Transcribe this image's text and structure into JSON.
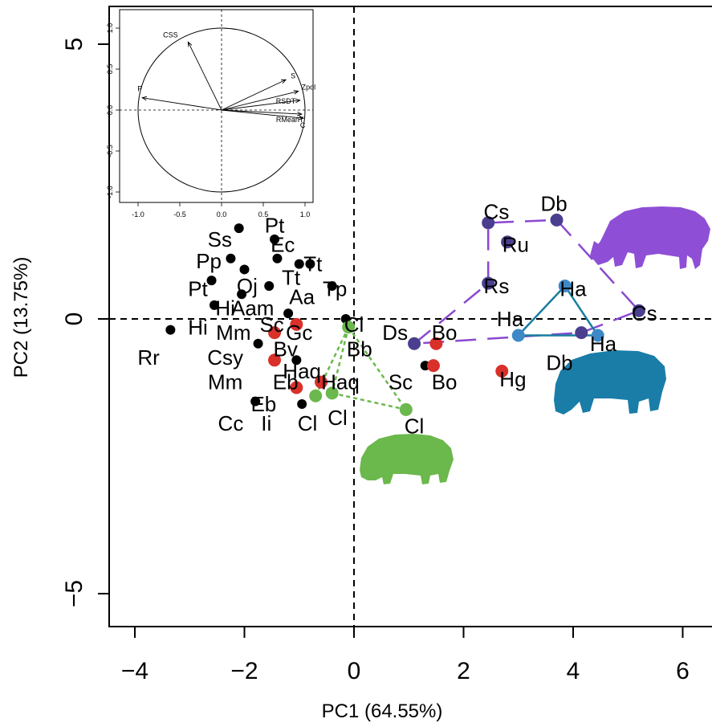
{
  "colors": {
    "black": "#000000",
    "red": "#d9302a",
    "green": "#6bb84c",
    "purple_dot": "#4a3f8f",
    "purple_line": "#8a48d0",
    "blue_dot": "#3f88c8",
    "blue_line": "#1a7da0",
    "rhino": "#8e4fd6",
    "hippo_blue": "#1a7da8",
    "hippo_green": "#6bb84c"
  },
  "chart_data": [
    {
      "type": "scatter",
      "title": "",
      "xlabel": "PC1 (64.55%)",
      "ylabel": "PC2 (13.75%)",
      "xlim": [
        -4.5,
        6.5
      ],
      "ylim": [
        -5.7,
        5.8
      ],
      "xticks": [
        -4,
        -2,
        0,
        2,
        4,
        6
      ],
      "xtick_labels": [
        "−4",
        "−2",
        "0",
        "2",
        "4",
        "6"
      ],
      "yticks": [
        -5,
        0,
        5
      ],
      "ytick_labels": [
        "−5",
        "0",
        "5"
      ],
      "reference_lines": {
        "x": 0,
        "y": 0,
        "style": "dashed"
      },
      "series": [
        {
          "group": "black",
          "color": "#000000",
          "points": [
            {
              "x": -2.1,
              "y": 1.65
            },
            {
              "x": -2.25,
              "y": 1.1
            },
            {
              "x": -2.6,
              "y": 0.7
            },
            {
              "x": -2.55,
              "y": 0.25
            },
            {
              "x": -2.0,
              "y": 0.9
            },
            {
              "x": -1.45,
              "y": 1.45
            },
            {
              "x": -1.4,
              "y": 1.1
            },
            {
              "x": -1.0,
              "y": 1.0
            },
            {
              "x": -0.8,
              "y": 1.0
            },
            {
              "x": -1.55,
              "y": 0.6
            },
            {
              "x": -2.05,
              "y": 0.45
            },
            {
              "x": -0.4,
              "y": 0.6
            },
            {
              "x": -1.2,
              "y": 0.1
            },
            {
              "x": -0.15,
              "y": 0.0
            },
            {
              "x": -1.75,
              "y": -0.45
            },
            {
              "x": -1.05,
              "y": -0.75
            },
            {
              "x": -0.6,
              "y": -1.15
            },
            {
              "x": -0.95,
              "y": -1.55
            },
            {
              "x": -1.8,
              "y": -1.5
            },
            {
              "x": -3.35,
              "y": -0.2
            },
            {
              "x": 1.3,
              "y": -0.85
            }
          ]
        },
        {
          "group": "red",
          "color": "#d9302a",
          "points": [
            {
              "x": -1.45,
              "y": -0.25
            },
            {
              "x": -1.05,
              "y": -0.1
            },
            {
              "x": -1.45,
              "y": -0.75
            },
            {
              "x": -0.6,
              "y": -1.15
            },
            {
              "x": -1.05,
              "y": -1.25
            },
            {
              "x": 1.5,
              "y": -0.45
            },
            {
              "x": 1.45,
              "y": -0.85
            },
            {
              "x": 2.7,
              "y": -0.95
            }
          ]
        },
        {
          "group": "green",
          "color": "#6bb84c",
          "connected": true,
          "points": [
            {
              "x": -0.1,
              "y": -0.15
            },
            {
              "x": -0.7,
              "y": -1.4
            },
            {
              "x": -0.4,
              "y": -1.35
            },
            {
              "x": 0.95,
              "y": -1.65
            }
          ]
        },
        {
          "group": "purple",
          "color": "#4a3f8f",
          "connected": true,
          "points": [
            {
              "x": 2.45,
              "y": 1.75
            },
            {
              "x": 3.7,
              "y": 1.8
            },
            {
              "x": 2.8,
              "y": 1.4
            },
            {
              "x": 2.45,
              "y": 0.65
            },
            {
              "x": 5.2,
              "y": 0.15
            },
            {
              "x": 4.15,
              "y": -0.25
            },
            {
              "x": 1.1,
              "y": -0.45
            }
          ]
        },
        {
          "group": "blue",
          "color": "#3f88c8",
          "connected": true,
          "points": [
            {
              "x": 3.85,
              "y": 0.6
            },
            {
              "x": 3.0,
              "y": -0.3
            },
            {
              "x": 4.45,
              "y": -0.3
            }
          ]
        }
      ],
      "labels": [
        {
          "text": "Pt",
          "x": -1.45,
          "y": 1.7
        },
        {
          "text": "Ss",
          "x": -2.45,
          "y": 1.45
        },
        {
          "text": "Ec",
          "x": -1.3,
          "y": 1.35
        },
        {
          "text": "Pp",
          "x": -2.65,
          "y": 1.05
        },
        {
          "text": "Tt",
          "x": -0.75,
          "y": 1.0
        },
        {
          "text": "Tt",
          "x": -1.15,
          "y": 0.75
        },
        {
          "text": "Pt",
          "x": -2.85,
          "y": 0.55
        },
        {
          "text": "Oj",
          "x": -1.95,
          "y": 0.6
        },
        {
          "text": "Tp",
          "x": -0.35,
          "y": 0.55
        },
        {
          "text": "Aa",
          "x": -0.95,
          "y": 0.4
        },
        {
          "text": "Hi",
          "x": -2.35,
          "y": 0.2
        },
        {
          "text": "Aam",
          "x": -1.85,
          "y": 0.2
        },
        {
          "text": "Hi",
          "x": -2.85,
          "y": -0.15
        },
        {
          "text": "Mm",
          "x": -2.2,
          "y": -0.25
        },
        {
          "text": "Sc",
          "x": -1.5,
          "y": -0.1
        },
        {
          "text": "Gc",
          "x": -1.0,
          "y": -0.25
        },
        {
          "text": "Cl",
          "x": 0.0,
          "y": -0.1
        },
        {
          "text": "Rr",
          "x": -3.75,
          "y": -0.7
        },
        {
          "text": "Csy",
          "x": -2.35,
          "y": -0.7
        },
        {
          "text": "Bv",
          "x": -1.25,
          "y": -0.55
        },
        {
          "text": "Bb",
          "x": 0.1,
          "y": -0.55
        },
        {
          "text": "Haq",
          "x": -0.95,
          "y": -0.95
        },
        {
          "text": "Mm",
          "x": -2.35,
          "y": -1.15
        },
        {
          "text": "Eb",
          "x": -1.25,
          "y": -1.15
        },
        {
          "text": "Haq",
          "x": -0.25,
          "y": -1.15
        },
        {
          "text": "Eb",
          "x": -1.65,
          "y": -1.55
        },
        {
          "text": "Cc",
          "x": -2.25,
          "y": -1.9
        },
        {
          "text": "Ii",
          "x": -1.6,
          "y": -1.9
        },
        {
          "text": "Cl",
          "x": -0.85,
          "y": -1.9
        },
        {
          "text": "Cl",
          "x": -0.3,
          "y": -1.8
        },
        {
          "text": "Cl",
          "x": 1.1,
          "y": -1.95
        },
        {
          "text": "Ds",
          "x": 0.75,
          "y": -0.25
        },
        {
          "text": "Bo",
          "x": 1.65,
          "y": -0.25
        },
        {
          "text": "Sc",
          "x": 0.85,
          "y": -1.15
        },
        {
          "text": "Bo",
          "x": 1.65,
          "y": -1.15
        },
        {
          "text": "Hg",
          "x": 2.9,
          "y": -1.1
        },
        {
          "text": "Cs",
          "x": 2.6,
          "y": 1.95
        },
        {
          "text": "Db",
          "x": 3.65,
          "y": 2.1
        },
        {
          "text": "Ru",
          "x": 2.95,
          "y": 1.35
        },
        {
          "text": "Rs",
          "x": 2.6,
          "y": 0.6
        },
        {
          "text": "Ha",
          "x": 4.0,
          "y": 0.55
        },
        {
          "text": "Ha",
          "x": 2.85,
          "y": 0.0
        },
        {
          "text": "Cs",
          "x": 5.3,
          "y": 0.1
        },
        {
          "text": "Ha",
          "x": 4.55,
          "y": -0.45
        },
        {
          "text": "Db",
          "x": 3.75,
          "y": -0.8
        }
      ]
    },
    {
      "type": "scatter",
      "title": "",
      "xlabel": "",
      "ylabel": "",
      "xlim": [
        -1.1,
        1.1
      ],
      "ylim": [
        -1.1,
        1.1
      ],
      "xticks": [
        -1.0,
        -0.5,
        0.0,
        0.5,
        1.0
      ],
      "xtick_labels": [
        "-1.0",
        "-0.5",
        "0.0",
        "0.5",
        "1.0"
      ],
      "yticks": [
        -1.0,
        -0.5,
        0.0,
        0.5,
        1.0
      ],
      "ytick_labels": [
        "-1.0",
        "-0.5",
        "0.0",
        "0.5",
        "1.0"
      ],
      "unit_circle": true,
      "vectors": [
        {
          "name": "CSS",
          "x": -0.4,
          "y": 0.83
        },
        {
          "name": "S",
          "x": 0.77,
          "y": 0.37
        },
        {
          "name": "Zpol",
          "x": 0.92,
          "y": 0.23
        },
        {
          "name": "RSDT",
          "x": 0.94,
          "y": 0.12
        },
        {
          "name": "RMeanT",
          "x": 0.96,
          "y": -0.05
        },
        {
          "name": "C",
          "x": 0.98,
          "y": -0.1
        },
        {
          "name": "P",
          "x": -0.95,
          "y": 0.15
        }
      ]
    }
  ]
}
